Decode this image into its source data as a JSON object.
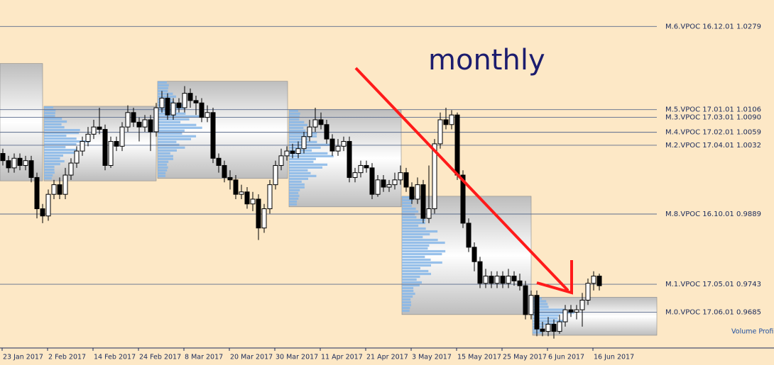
{
  "chart_data": {
    "type": "candlestick",
    "annotation": "monthly",
    "indicator_label": "Volume Profil",
    "categories": [
      "23 Jan 2017",
      null,
      null,
      null,
      null,
      null,
      null,
      null,
      "2 Feb 2017",
      null,
      null,
      null,
      null,
      null,
      null,
      null,
      "14 Feb 2017",
      null,
      null,
      null,
      null,
      null,
      null,
      null,
      "24 Feb 2017",
      null,
      null,
      null,
      null,
      null,
      null,
      null,
      "8 Mar 2017",
      null,
      null,
      null,
      null,
      null,
      null,
      null,
      "20 Mar 2017",
      null,
      null,
      null,
      null,
      null,
      null,
      null,
      "30 Mar 2017",
      null,
      null,
      null,
      null,
      null,
      null,
      null,
      "11 Apr 2017",
      null,
      null,
      null,
      null,
      null,
      null,
      null,
      "21 Apr 2017",
      null,
      null,
      null,
      null,
      null,
      null,
      null,
      "3 May 2017",
      null,
      null,
      null,
      null,
      null,
      null,
      null,
      "15 May 2017",
      null,
      null,
      null,
      null,
      null,
      null,
      null,
      "25 May 2017",
      null,
      null,
      null,
      null,
      null,
      null,
      null,
      "6 Jun 2017",
      null,
      null,
      null,
      null,
      null,
      null,
      null,
      "16 Jun 2017",
      null
    ],
    "open": [
      1.0015,
      1.0,
      0.9985,
      1.0005,
      0.999,
      1.0,
      0.9965,
      0.99,
      0.9885,
      0.993,
      0.995,
      0.993,
      0.997,
      0.9995,
      1.002,
      1.004,
      1.0055,
      1.007,
      1.0065,
      0.999,
      1.004,
      1.003,
      1.007,
      1.01,
      1.008,
      1.007,
      1.0085,
      1.006,
      1.011,
      1.013,
      1.0095,
      1.012,
      1.011,
      1.014,
      1.0125,
      1.012,
      1.009,
      1.01,
      1.0005,
      0.999,
      0.9965,
      0.996,
      0.993,
      0.9935,
      0.991,
      0.992,
      0.986,
      0.99,
      0.995,
      0.999,
      1.001,
      1.002,
      1.0015,
      1.0025,
      1.005,
      1.007,
      1.0085,
      1.0075,
      1.0045,
      1.002,
      1.003,
      1.004,
      0.9965,
      0.9975,
      0.999,
      0.9985,
      0.993,
      0.996,
      0.9945,
      0.995,
      0.996,
      0.9975,
      0.9945,
      0.992,
      0.995,
      0.988,
      0.99,
      1.0035,
      1.0085,
      1.0075,
      1.0095,
      0.997,
      0.987,
      0.982,
      0.979,
      0.9745,
      0.976,
      0.9745,
      0.976,
      0.9745,
      0.976,
      0.975,
      0.974,
      0.968,
      0.972,
      0.965,
      0.9645,
      0.966,
      0.9645,
      0.9665,
      0.969,
      0.9685,
      0.969,
      0.971,
      0.9745,
      0.976
    ],
    "high": [
      1.0025,
      1.001,
      1.0015,
      1.0015,
      1.001,
      1.001,
      0.9975,
      0.991,
      0.994,
      0.996,
      0.9965,
      0.9985,
      1.0005,
      1.003,
      1.005,
      1.007,
      1.0085,
      1.011,
      1.0075,
      1.005,
      1.005,
      1.008,
      1.0115,
      1.011,
      1.009,
      1.0095,
      1.0095,
      1.012,
      1.0145,
      1.014,
      1.013,
      1.013,
      1.0155,
      1.015,
      1.0135,
      1.013,
      1.0115,
      1.011,
      1.0015,
      1.0,
      0.998,
      0.997,
      0.995,
      0.9945,
      0.9935,
      0.993,
      0.991,
      0.996,
      1.0,
      1.0025,
      1.003,
      1.0035,
      1.004,
      1.006,
      1.0085,
      1.011,
      1.01,
      1.0085,
      1.0055,
      1.0045,
      1.005,
      1.005,
      0.9985,
      1.0,
      1.0,
      0.9995,
      0.997,
      0.997,
      0.996,
      0.9975,
      0.999,
      0.9985,
      0.9955,
      0.9965,
      0.996,
      0.999,
      1.0045,
      1.01,
      1.011,
      1.0105,
      1.01,
      0.998,
      0.988,
      0.983,
      0.98,
      0.9775,
      0.977,
      0.977,
      0.977,
      0.9775,
      0.977,
      0.9765,
      0.975,
      0.973,
      0.973,
      0.9665,
      0.9675,
      0.967,
      0.968,
      0.97,
      0.97,
      0.97,
      0.9725,
      0.9755,
      0.977,
      0.9765
    ],
    "low": [
      0.999,
      0.9975,
      0.9975,
      0.998,
      0.998,
      0.9955,
      0.988,
      0.987,
      0.9875,
      0.992,
      0.992,
      0.992,
      0.996,
      0.9985,
      1.001,
      1.003,
      1.0045,
      1.0055,
      0.998,
      0.9985,
      1.002,
      1.002,
      1.006,
      1.007,
      1.004,
      1.006,
      1.002,
      1.005,
      1.01,
      1.0085,
      1.0085,
      1.01,
      1.01,
      1.011,
      1.0095,
      1.008,
      1.008,
      0.9995,
      0.9975,
      0.9955,
      0.994,
      0.992,
      0.992,
      0.99,
      0.9895,
      0.9835,
      0.985,
      0.989,
      0.994,
      0.998,
      1.0,
      1.0005,
      1.0005,
      1.0015,
      1.004,
      1.006,
      1.0065,
      1.0035,
      1.001,
      1.001,
      1.002,
      0.9955,
      0.9955,
      0.9965,
      0.9975,
      0.992,
      0.9925,
      0.9935,
      0.9935,
      0.994,
      0.995,
      0.9935,
      0.991,
      0.991,
      0.987,
      0.987,
      0.989,
      1.0025,
      1.0065,
      1.0065,
      0.996,
      0.986,
      0.981,
      0.977,
      0.9735,
      0.9735,
      0.9735,
      0.9735,
      0.9735,
      0.9735,
      0.974,
      0.973,
      0.967,
      0.967,
      0.9635,
      0.9635,
      0.9635,
      0.963,
      0.964,
      0.9655,
      0.9675,
      0.967,
      0.9655,
      0.97,
      0.973,
      0.973
    ],
    "close": [
      1.0,
      0.9985,
      1.0005,
      0.999,
      1.0,
      0.9965,
      0.99,
      0.9885,
      0.993,
      0.995,
      0.993,
      0.997,
      0.9995,
      1.002,
      1.004,
      1.0055,
      1.007,
      1.0065,
      0.999,
      1.004,
      1.003,
      1.007,
      1.01,
      1.008,
      1.007,
      1.0085,
      1.006,
      1.011,
      1.013,
      1.0095,
      1.012,
      1.011,
      1.014,
      1.0125,
      1.012,
      1.009,
      1.01,
      1.0005,
      0.999,
      0.9965,
      0.996,
      0.993,
      0.9935,
      0.991,
      0.992,
      0.986,
      0.99,
      0.995,
      0.999,
      1.001,
      1.002,
      1.0015,
      1.0025,
      1.005,
      1.007,
      1.0085,
      1.0075,
      1.0045,
      1.002,
      1.003,
      1.004,
      0.9965,
      0.9975,
      0.999,
      0.9985,
      0.993,
      0.996,
      0.9945,
      0.995,
      0.996,
      0.9975,
      0.9945,
      0.992,
      0.995,
      0.988,
      0.99,
      1.0035,
      1.0085,
      1.0075,
      1.0095,
      0.997,
      0.987,
      0.982,
      0.979,
      0.9745,
      0.976,
      0.9745,
      0.976,
      0.9745,
      0.976,
      0.975,
      0.974,
      0.968,
      0.972,
      0.965,
      0.9645,
      0.966,
      0.9645,
      0.9665,
      0.969,
      0.9685,
      0.969,
      0.971,
      0.9745,
      0.976,
      0.974
    ],
    "ylim": [
      0.9612,
      1.0334
    ],
    "levels": [
      {
        "value": 1.0279,
        "label": "M.6.VPOC 16.12.01 1.0279"
      },
      {
        "value": 1.0106,
        "label": "M.5.VPOC 17.01.01 1.0106"
      },
      {
        "value": 1.009,
        "label": "M.3.VPOC 17.03.01 1.0090"
      },
      {
        "value": 1.0059,
        "label": "M.4.VPOC 17.02.01 1.0059"
      },
      {
        "value": 1.0032,
        "label": "M.2.VPOC 17.04.01 1.0032"
      },
      {
        "value": 0.9889,
        "label": "M.8.VPOC 16.10.01 0.9889"
      },
      {
        "value": 0.9743,
        "label": "M.1.VPOC 17.05.01 0.9743"
      },
      {
        "value": 0.9685,
        "label": "M.0.VPOC 17.06.01 0.9685"
      }
    ],
    "profiles": [
      {
        "high": 1.0202,
        "low": 0.9958
      },
      {
        "high": 1.0113,
        "low": 0.9958
      },
      {
        "high": 1.0165,
        "low": 0.9963
      },
      {
        "high": 1.0106,
        "low": 0.9904
      },
      {
        "high": 0.9926,
        "low": 0.968
      },
      {
        "high": 0.9716,
        "low": 0.9637
      }
    ],
    "bull_color": "#ffffff",
    "bear_color": "#000000",
    "level_color": "#5a6b8c"
  }
}
